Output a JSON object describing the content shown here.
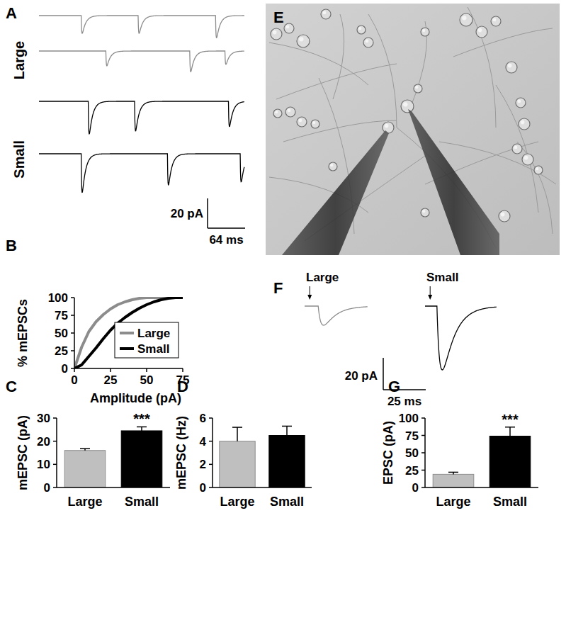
{
  "panel_labels": [
    "A",
    "B",
    "C",
    "D",
    "E",
    "F",
    "G"
  ],
  "traces_A": {
    "duration_ms": 350,
    "groups": [
      {
        "name": "Large",
        "color": "#8c8c8c",
        "traces": [
          [
            {
              "t": 72,
              "amp": 12
            },
            {
              "t": 169,
              "amp": 12
            },
            {
              "t": 301,
              "amp": 15
            }
          ],
          [
            {
              "t": 114,
              "amp": 10
            },
            {
              "t": 257,
              "amp": 14
            },
            {
              "t": 317,
              "amp": 9
            }
          ]
        ]
      },
      {
        "name": "Small",
        "color": "#000000",
        "traces": [
          [
            {
              "t": 84,
              "amp": 22
            },
            {
              "t": 163,
              "amp": 20
            },
            {
              "t": 323,
              "amp": 17
            }
          ],
          [
            {
              "t": 72,
              "amp": 26
            },
            {
              "t": 219,
              "amp": 21
            },
            {
              "t": 343,
              "amp": 19
            }
          ]
        ]
      }
    ],
    "scale_bar": {
      "y": 20,
      "y_label": "20 pA",
      "x": 64,
      "x_label": "64 ms"
    }
  },
  "traces_F": {
    "groups": [
      {
        "name": "Large",
        "color": "#8c8c8c",
        "duration": 37,
        "stimulus": 3,
        "onset": 8,
        "amp": 12
      },
      {
        "name": "Small",
        "color": "#000000",
        "duration": 42,
        "stimulus": 3,
        "onset": 7,
        "amp": 40
      }
    ],
    "scale_bar": {
      "y": 20,
      "y_label": "20 pA",
      "x": 25,
      "x_label": "25 ms"
    }
  },
  "chart_data": [
    {
      "type": "line",
      "x": [
        0,
        5,
        10,
        15,
        20,
        25,
        30,
        35,
        40,
        45,
        50,
        55,
        60,
        65,
        70,
        75
      ],
      "series": [
        {
          "name": "Large",
          "color": "#8c8c8c",
          "values": [
            0,
            30,
            52,
            66,
            76,
            84,
            90,
            94,
            97,
            99,
            100,
            100,
            100,
            100,
            100,
            100
          ]
        },
        {
          "name": "Small",
          "color": "#000000",
          "values": [
            0,
            5,
            17,
            29,
            42,
            54,
            64,
            72,
            79,
            85,
            90,
            94,
            97,
            99,
            100,
            100
          ]
        }
      ],
      "xlabel": "Amplitude (pA)",
      "ylabel": "% mEPSCs",
      "xlim": [
        0,
        75
      ],
      "xticks": [
        0,
        25,
        50,
        75
      ],
      "ylim": [
        0,
        100
      ],
      "yticks": [
        0,
        25,
        50,
        75,
        100
      ],
      "legend": "right"
    },
    {
      "type": "bar",
      "categories": [
        "Large",
        "Small"
      ],
      "values": [
        16,
        24.5
      ],
      "errors": [
        0.8,
        1.7
      ],
      "colors": [
        "#bfbfbf",
        "#000000"
      ],
      "significance": [
        null,
        "***"
      ],
      "ylabel": "mEPSC (pA)",
      "ylim": [
        0,
        30
      ],
      "yticks": [
        0,
        10,
        20,
        30
      ]
    },
    {
      "type": "bar",
      "categories": [
        "Large",
        "Small"
      ],
      "values": [
        4.0,
        4.5
      ],
      "errors": [
        1.2,
        0.8
      ],
      "colors": [
        "#bfbfbf",
        "#000000"
      ],
      "significance": [
        null,
        null
      ],
      "ylabel": "mEPSC (Hz)",
      "ylim": [
        0,
        6
      ],
      "yticks": [
        0,
        2,
        4,
        6
      ]
    },
    {
      "type": "bar",
      "categories": [
        "Large",
        "Small"
      ],
      "values": [
        19,
        74
      ],
      "errors": [
        3,
        13
      ],
      "colors": [
        "#bfbfbf",
        "#000000"
      ],
      "significance": [
        null,
        "***"
      ],
      "ylabel": "EPSC (pA)",
      "ylim": [
        0,
        100
      ],
      "yticks": [
        0,
        25,
        50,
        75,
        100
      ]
    }
  ]
}
